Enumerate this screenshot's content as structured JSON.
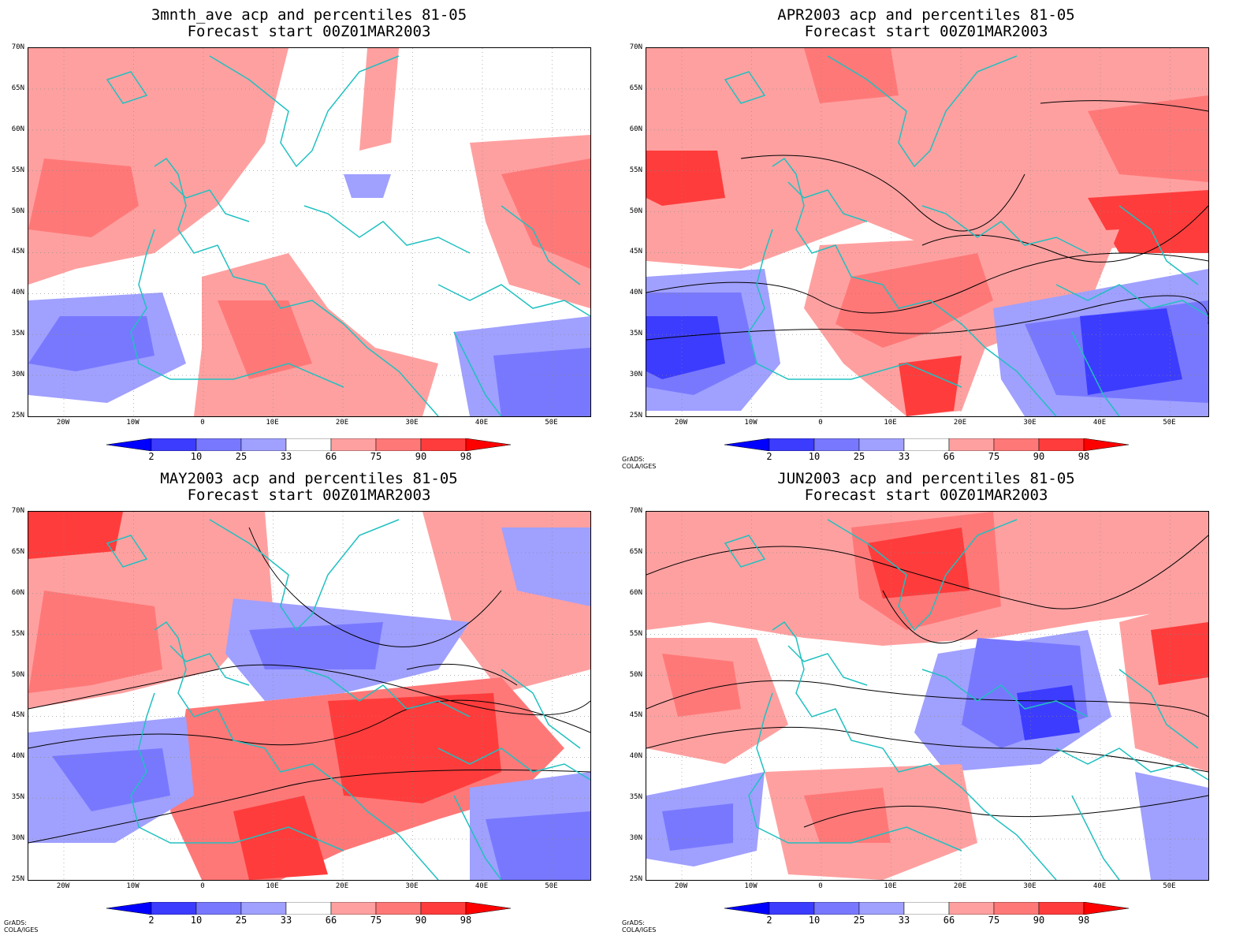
{
  "panels": [
    {
      "title_line1": "3mnth_ave acp and percentiles 81-05",
      "title_line2": "Forecast start 00Z01MAR2003",
      "credit": ""
    },
    {
      "title_line1": "APR2003 acp and percentiles 81-05",
      "title_line2": "Forecast start 00Z01MAR2003",
      "credit": "GrADS: COLA/IGES"
    },
    {
      "title_line1": "MAY2003 acp and percentiles 81-05",
      "title_line2": "Forecast start 00Z01MAR2003",
      "credit": "GrADS: COLA/IGES"
    },
    {
      "title_line1": "JUN2003 acp and percentiles 81-05",
      "title_line2": "Forecast start 00Z01MAR2003",
      "credit": "GrADS: COLA/IGES"
    }
  ],
  "lat_labels": [
    "70N",
    "65N",
    "60N",
    "55N",
    "50N",
    "45N",
    "40N",
    "35N",
    "30N",
    "25N"
  ],
  "lon_labels": [
    "20W",
    "10W",
    "0",
    "10E",
    "20E",
    "30E",
    "40E",
    "50E"
  ],
  "colorbar": {
    "labels": [
      "2",
      "10",
      "25",
      "33",
      "66",
      "75",
      "90",
      "98"
    ],
    "colors": [
      "#0000ff",
      "#3c3cff",
      "#7878ff",
      "#a0a0ff",
      "#ffffff",
      "#ffa0a0",
      "#ff7878",
      "#ff3c3c",
      "#ff0000"
    ]
  },
  "colors": {
    "coastline": "#20c0c0",
    "contour": "#000000",
    "grid": "#888888"
  }
}
